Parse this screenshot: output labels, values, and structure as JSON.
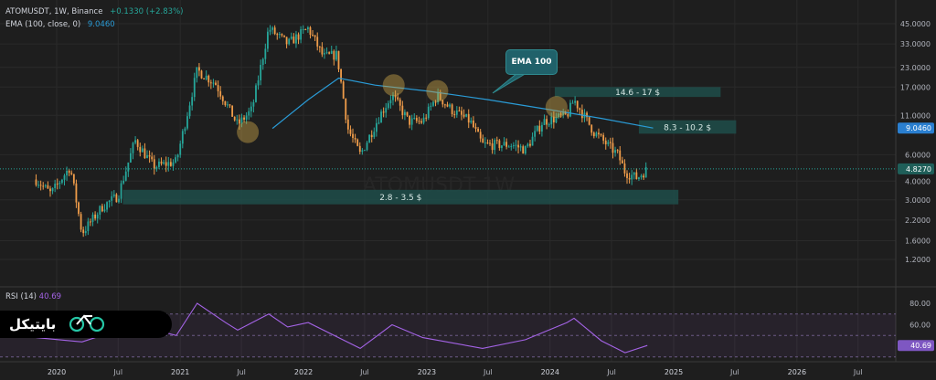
{
  "header": {
    "symbol": "ATOMUSDT, 1W, Binance",
    "change": "+0.1330 (+2.83%)",
    "ema_label": "EMA (100, close, 0)",
    "ema_value": "9.0460",
    "rsi_label": "RSI (14)",
    "rsi_value": "40.69"
  },
  "annotations": {
    "ema_callout": "EMA 100",
    "zone_high": "14.6  -  17 $",
    "zone_mid": "8.3  -  10.2 $",
    "zone_low": "2.8 - 3.5 $",
    "watermark": "ATOMUSDT 1W"
  },
  "brand": {
    "text": "بایتیکل",
    "logo_icon": "bicycle-icon"
  },
  "colors": {
    "background": "#1e1e1e",
    "up": "#26a69a",
    "down": "#ef9c4a",
    "ema": "#2a9bd6",
    "rsi": "#a463e6",
    "zone": "#1f4d4a",
    "marker": "#c9a34a"
  },
  "chart_data": {
    "type": "candlestick",
    "symbol": "ATOMUSDT",
    "interval": "1W",
    "exchange": "Binance",
    "y_scale": "log",
    "price_axis_ticks": [
      "45.0000",
      "33.0000",
      "23.0000",
      "17.0000",
      "11.0000",
      "6.0000",
      "4.0000",
      "3.0000",
      "2.2000",
      "1.6000",
      "1.2000"
    ],
    "price_axis_values": [
      45,
      33,
      23,
      17,
      11,
      6,
      4,
      3,
      2.2,
      1.6,
      1.2
    ],
    "rsi_axis_ticks": [
      "80.00",
      "60.00",
      "40.00"
    ],
    "rsi_axis_values": [
      80,
      60,
      40
    ],
    "x_axis_ticks": [
      "2020",
      "Jul",
      "2021",
      "Jul",
      "2022",
      "Jul",
      "2023",
      "Jul",
      "2024",
      "Jul",
      "2025",
      "Jul",
      "2026",
      "Jul"
    ],
    "x_axis_dates": [
      "2020-01-01",
      "2020-07-01",
      "2021-01-01",
      "2021-07-01",
      "2022-01-01",
      "2022-07-01",
      "2023-01-01",
      "2023-07-01",
      "2024-01-01",
      "2024-07-01",
      "2025-01-01",
      "2025-07-01",
      "2026-01-01",
      "2026-07-01"
    ],
    "last_price": 4.827,
    "last_price_label": "4.8270",
    "ema100_last": 9.046,
    "ema100_last_label": "9.0460",
    "rsi_last": 40.69,
    "rsi_last_label": "40.69",
    "price_path": [
      [
        "2019-11-01",
        4.1
      ],
      [
        "2019-12-15",
        3.3
      ],
      [
        "2020-02-10",
        5.0
      ],
      [
        "2020-03-16",
        1.8
      ],
      [
        "2020-05-15",
        2.7
      ],
      [
        "2020-07-01",
        3.2
      ],
      [
        "2020-08-20",
        7.5
      ],
      [
        "2020-10-15",
        5.0
      ],
      [
        "2020-12-20",
        5.4
      ],
      [
        "2021-02-20",
        22.0
      ],
      [
        "2021-04-15",
        18.0
      ],
      [
        "2021-06-20",
        9.5
      ],
      [
        "2021-08-01",
        12.0
      ],
      [
        "2021-09-20",
        42.0
      ],
      [
        "2021-11-15",
        33.0
      ],
      [
        "2022-01-15",
        42.0
      ],
      [
        "2022-03-01",
        27.0
      ],
      [
        "2022-04-10",
        28.0
      ],
      [
        "2022-05-12",
        9.0
      ],
      [
        "2022-06-18",
        6.0
      ],
      [
        "2022-08-15",
        11.0
      ],
      [
        "2022-09-20",
        15.0
      ],
      [
        "2022-11-09",
        10.0
      ],
      [
        "2022-12-20",
        10.0
      ],
      [
        "2023-02-01",
        15.0
      ],
      [
        "2023-03-15",
        12.0
      ],
      [
        "2023-05-10",
        10.0
      ],
      [
        "2023-06-15",
        7.0
      ],
      [
        "2023-09-10",
        7.0
      ],
      [
        "2023-10-20",
        6.5
      ],
      [
        "2023-12-10",
        10.0
      ],
      [
        "2024-02-20",
        11.0
      ],
      [
        "2024-03-12",
        14.0
      ],
      [
        "2024-05-10",
        8.5
      ],
      [
        "2024-07-20",
        6.0
      ],
      [
        "2024-08-10",
        4.6
      ],
      [
        "2024-09-15",
        4.2
      ],
      [
        "2024-10-15",
        4.83
      ]
    ],
    "ema100_path": [
      [
        "2021-10-01",
        9.0
      ],
      [
        "2022-01-15",
        14.0
      ],
      [
        "2022-04-15",
        19.5
      ],
      [
        "2022-08-01",
        17.5
      ],
      [
        "2023-01-01",
        16.0
      ],
      [
        "2023-07-01",
        14.0
      ],
      [
        "2024-01-01",
        12.0
      ],
      [
        "2024-06-01",
        10.5
      ],
      [
        "2024-11-01",
        9.05
      ]
    ],
    "rsi_path": [
      [
        "2019-11-01",
        48
      ],
      [
        "2020-03-16",
        44
      ],
      [
        "2020-08-20",
        60
      ],
      [
        "2020-12-20",
        50
      ],
      [
        "2021-02-20",
        80
      ],
      [
        "2021-05-15",
        62
      ],
      [
        "2021-06-20",
        55
      ],
      [
        "2021-09-20",
        70
      ],
      [
        "2021-11-15",
        58
      ],
      [
        "2022-01-15",
        62
      ],
      [
        "2022-06-18",
        38
      ],
      [
        "2022-09-20",
        60
      ],
      [
        "2022-12-20",
        48
      ],
      [
        "2023-06-15",
        38
      ],
      [
        "2023-10-20",
        46
      ],
      [
        "2024-02-20",
        62
      ],
      [
        "2024-03-12",
        66
      ],
      [
        "2024-06-01",
        45
      ],
      [
        "2024-08-10",
        34
      ],
      [
        "2024-10-15",
        40.69
      ]
    ],
    "zones": [
      {
        "label": "14.6  -  17 $",
        "low": 14.6,
        "high": 17,
        "from": "2024-01-15",
        "to": "2025-05-20"
      },
      {
        "label": "8.3  -  10.2 $",
        "low": 8.3,
        "high": 10.2,
        "from": "2024-09-20",
        "to": "2025-07-05"
      },
      {
        "label": "2.8 - 3.5 $",
        "low": 2.8,
        "high": 3.5,
        "from": "2020-07-15",
        "to": "2025-01-15"
      }
    ],
    "markers": [
      {
        "date": "2021-07-20",
        "price": 8.5
      },
      {
        "date": "2022-09-25",
        "price": 17.5
      },
      {
        "date": "2023-02-01",
        "price": 16.0
      },
      {
        "date": "2024-01-20",
        "price": 12.5
      }
    ],
    "ema_callout_target": {
      "date": "2023-07-15",
      "price": 15.5
    }
  }
}
